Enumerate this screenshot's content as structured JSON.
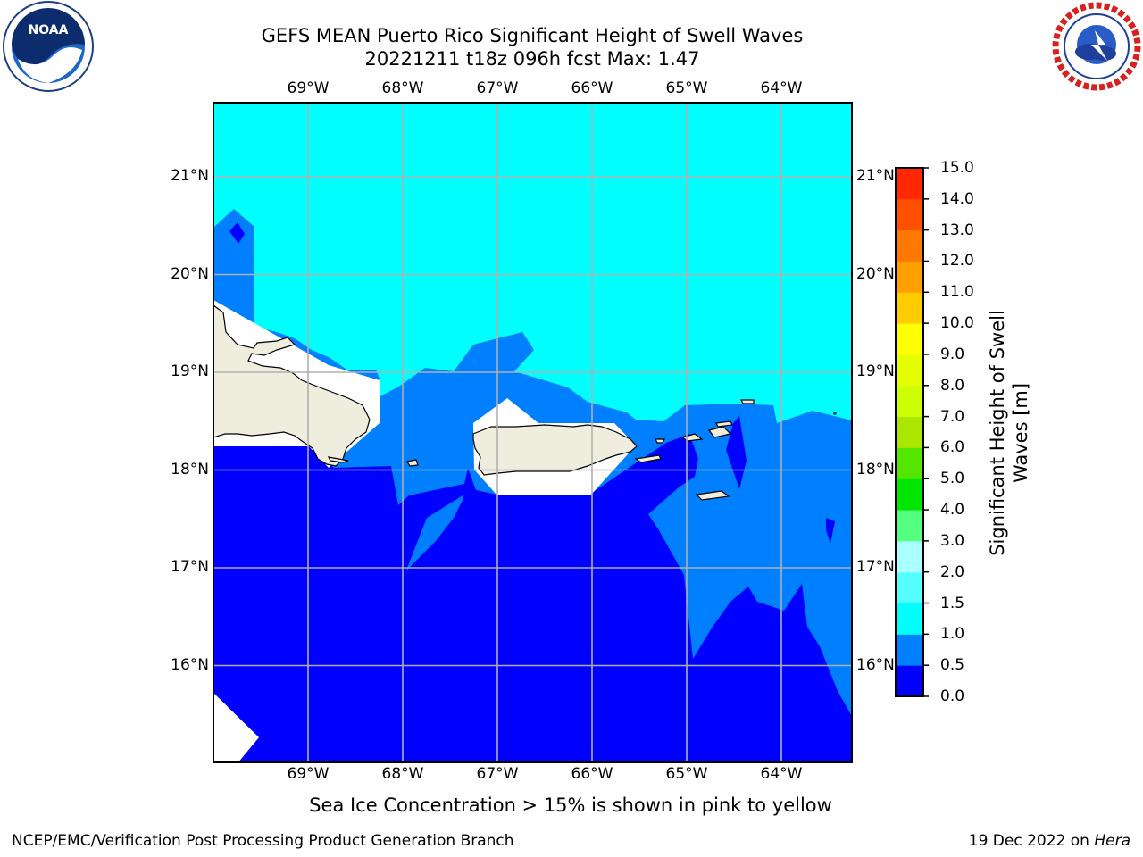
{
  "header": {
    "title_line1": "GEFS MEAN Puerto Rico Significant Height of Swell Waves",
    "title_line2": "20221211 t18z 096h fcst   Max: 1.47"
  },
  "logos": {
    "noaa": {
      "text": "NOAA",
      "ring_text": "NATIONAL OCEANIC AND ATMOSPHERIC ADMINISTRATION · U.S. DEPARTMENT OF COMMERCE"
    },
    "nws": {
      "ring_text": "NATIONAL WEATHER SERVICE"
    }
  },
  "map": {
    "lon_labels": [
      "69°W",
      "68°W",
      "67°W",
      "66°W",
      "65°W",
      "64°W"
    ],
    "lat_labels": [
      "21°N",
      "20°N",
      "19°N",
      "18°N",
      "17°N",
      "16°N"
    ],
    "extent": {
      "lon_min": -70.0,
      "lon_max": -63.25,
      "lat_min": 15.0,
      "lat_max": 21.75
    },
    "gridlines": true,
    "colors": {
      "band_0_0.5": "#0000ff",
      "band_0.5_1.0": "#0080ff",
      "band_1.0_1.5": "#00ffff",
      "land": "#efeddd",
      "no_data": "#ffffff"
    }
  },
  "colorbar": {
    "label": "Significant Height of Swell Waves [m]",
    "label_line1": "Significant Height of Swell",
    "label_line2": "Waves [m]",
    "ticks": [
      "15.0",
      "14.0",
      "13.0",
      "12.0",
      "11.0",
      "10.0",
      "9.0",
      "8.0",
      "7.0",
      "6.0",
      "5.0",
      "4.0",
      "3.0",
      "2.0",
      "1.5",
      "1.0",
      "0.5",
      "0.0"
    ],
    "levels": [
      0.0,
      0.5,
      1.0,
      1.5,
      2.0,
      3.0,
      4.0,
      5.0,
      6.0,
      7.0,
      8.0,
      9.0,
      10.0,
      11.0,
      12.0,
      13.0,
      14.0,
      15.0
    ],
    "colors": [
      "#0000ff",
      "#0080ff",
      "#00ffff",
      "#55ffff",
      "#aaffff",
      "#55ff80",
      "#00e600",
      "#55e600",
      "#aae600",
      "#cdff00",
      "#e6ff00",
      "#ffff00",
      "#ffcc00",
      "#ffa000",
      "#ff7800",
      "#ff5000",
      "#ff2800"
    ]
  },
  "footer": {
    "sea_ice_note": "Sea Ice Concentration > 15% is shown in pink to yellow",
    "left": "NCEP/EMC/Verification Post Processing Product Generation Branch",
    "right_date": "19 Dec 2022 on",
    "right_host": "Hera"
  }
}
